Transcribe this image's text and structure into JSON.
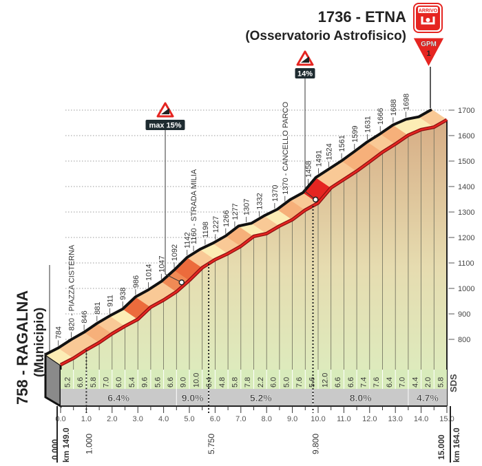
{
  "chart_data": {
    "type": "area",
    "title": "",
    "start": {
      "elevation_label": "758 - RAGALNA",
      "sub_label": "(Municipio)",
      "elevation": 758
    },
    "finish": {
      "elevation_label": "1736 - ETNA",
      "sub_label": "(Osservatorio Astrofisico)",
      "elevation": 1736,
      "arrivo_label": "ARRIVO",
      "gpm_label": "GPM",
      "gpm_category": "1"
    },
    "x_ticks": [
      "0.0",
      "1.0",
      "2.0",
      "3.0",
      "4.0",
      "5.0",
      "6.0",
      "7.0",
      "8.0",
      "9.0",
      "10.0",
      "11.0",
      "12.0",
      "13.0",
      "14.0",
      "15.0"
    ],
    "xlim": [
      0,
      15
    ],
    "y_ticks": [
      1700,
      1600,
      1500,
      1400,
      1300,
      1200,
      1100,
      1000,
      900,
      800
    ],
    "ylim": [
      758,
      1736
    ],
    "half_km_gradients": [
      5.2,
      6.6,
      5.8,
      7.0,
      6.0,
      5.4,
      9.6,
      5.6,
      6.6,
      9.0,
      10.0,
      6.4,
      4.8,
      5.8,
      7.8,
      2.2,
      6.0,
      5.0,
      7.6,
      5.6,
      12.0,
      6.6,
      6.6,
      7.4,
      7.6,
      6.4,
      7.0,
      4.4,
      2.0,
      5.8
    ],
    "section_averages": [
      {
        "from": 0,
        "to": 4.5,
        "label": "6.4%"
      },
      {
        "from": 4.5,
        "to": 5.75,
        "label": "9.0%"
      },
      {
        "from": 5.75,
        "to": 9.8,
        "label": "5.2%"
      },
      {
        "from": 9.8,
        "to": 13.5,
        "label": "8.0%"
      },
      {
        "from": 13.5,
        "to": 15,
        "label": "4.7%"
      }
    ],
    "elevation_labels": [
      {
        "km": 0.5,
        "text": "784"
      },
      {
        "km": 1.0,
        "text": "820 - PIAZZA CISTERNA"
      },
      {
        "km": 1.5,
        "text": "846"
      },
      {
        "km": 2.0,
        "text": "881"
      },
      {
        "km": 2.5,
        "text": "911"
      },
      {
        "km": 3.0,
        "text": "938"
      },
      {
        "km": 3.5,
        "text": "986"
      },
      {
        "km": 4.0,
        "text": "1014"
      },
      {
        "km": 4.5,
        "text": "1047"
      },
      {
        "km": 5.0,
        "text": "1092"
      },
      {
        "km": 5.5,
        "text": "1142"
      },
      {
        "km": 5.75,
        "text": "1160 - STRADA MILIA"
      },
      {
        "km": 6.2,
        "text": "1198"
      },
      {
        "km": 6.6,
        "text": "1227"
      },
      {
        "km": 7.0,
        "text": "1266"
      },
      {
        "km": 7.35,
        "text": "1277"
      },
      {
        "km": 7.8,
        "text": "1307"
      },
      {
        "km": 8.3,
        "text": "1332"
      },
      {
        "km": 8.9,
        "text": "1370"
      },
      {
        "km": 9.3,
        "text": "1370 - CANCELLO PARCO"
      },
      {
        "km": 10.2,
        "text": "1458"
      },
      {
        "km": 10.6,
        "text": "1491"
      },
      {
        "km": 11.0,
        "text": "1524"
      },
      {
        "km": 11.5,
        "text": "1561"
      },
      {
        "km": 12.0,
        "text": "1599"
      },
      {
        "km": 12.5,
        "text": "1631"
      },
      {
        "km": 13.0,
        "text": "1666"
      },
      {
        "km": 13.5,
        "text": "1688"
      },
      {
        "km": 14.0,
        "text": "1698"
      }
    ],
    "markers": [
      {
        "km": 0,
        "label": "0.000",
        "km_total": "km 149.0"
      },
      {
        "km": 1.0,
        "label": "1.000"
      },
      {
        "km": 5.75,
        "label": "5.750"
      },
      {
        "km": 9.8,
        "label": "9.800"
      },
      {
        "km": 15,
        "label": "15.000",
        "km_total": "km 164.0"
      }
    ],
    "steep_signs": [
      {
        "km": 4.7,
        "label": "max 15%"
      },
      {
        "km": 9.9,
        "label": "14%"
      }
    ],
    "logo": "SDS",
    "colors": {
      "red": "#e52521",
      "road_back": "#1a1a1a",
      "side_top": "#d9b58d",
      "side_bottom": "#e3f0c8",
      "band_gray": "#c9c9c9",
      "band_green": "#d8ebbb"
    }
  }
}
